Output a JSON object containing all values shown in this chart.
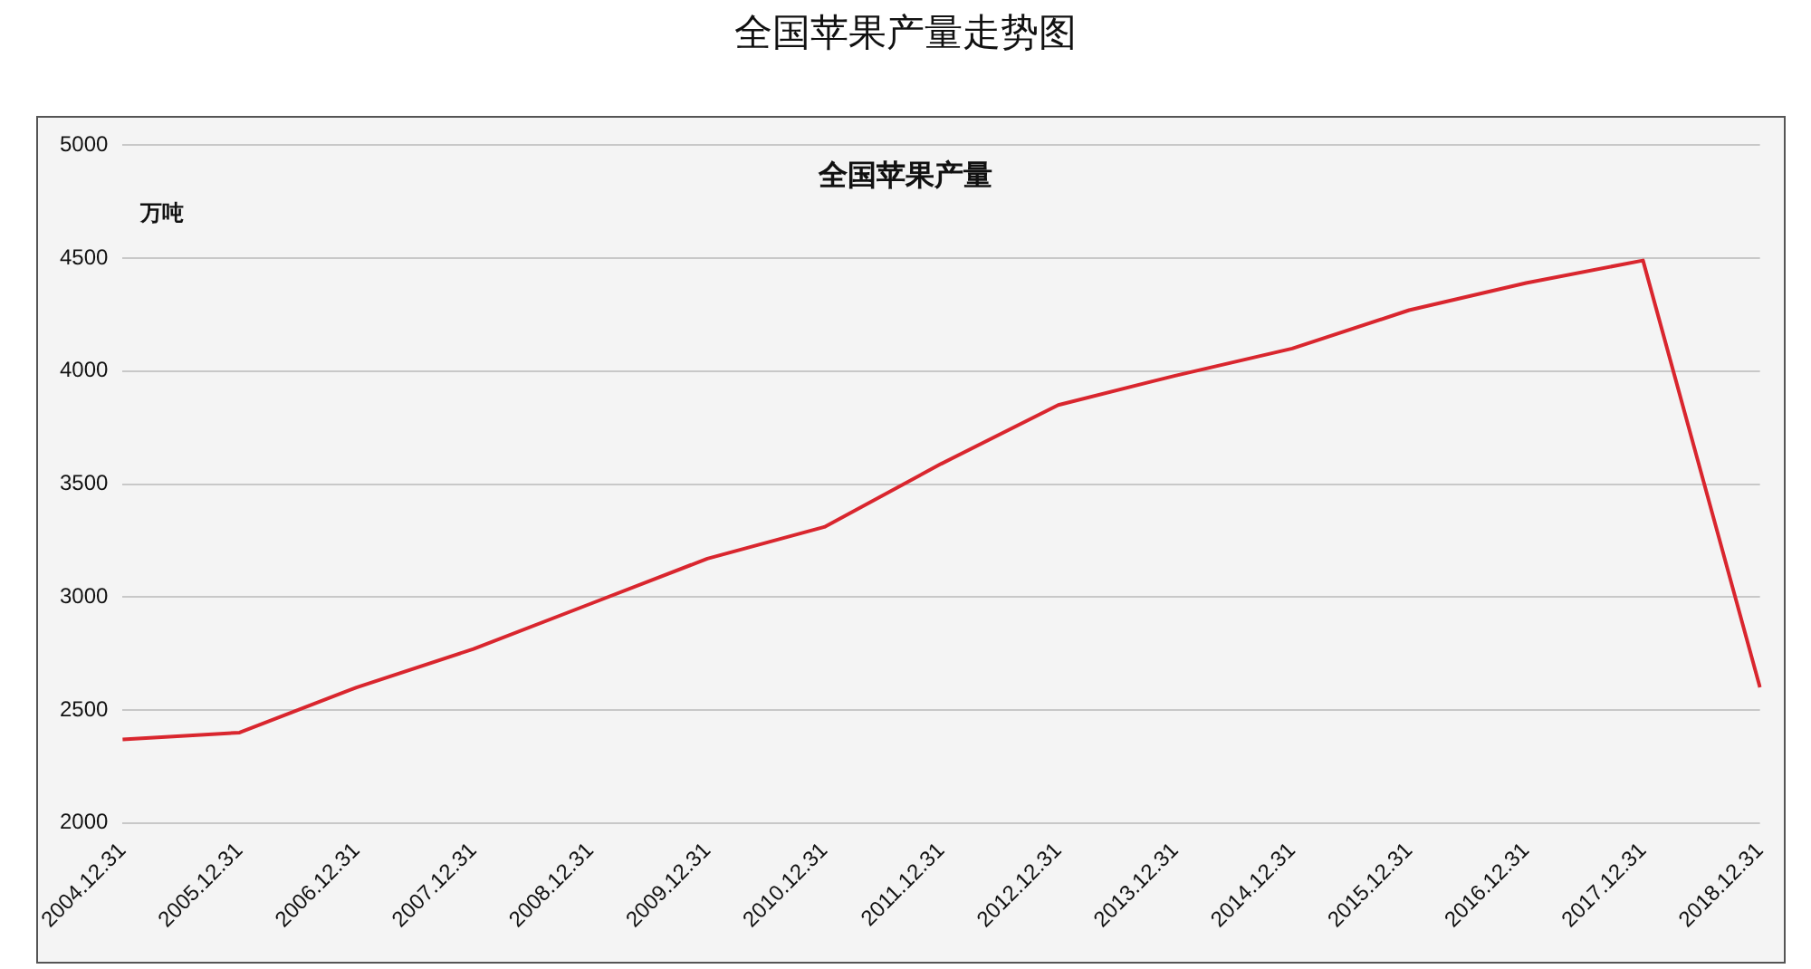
{
  "chart_data": {
    "type": "line",
    "title": "全国苹果产量走势图",
    "subtitle": "全国苹果产量",
    "ylabel": "万吨",
    "categories": [
      "2004.12.31",
      "2005.12.31",
      "2006.12.31",
      "2007.12.31",
      "2008.12.31",
      "2009.12.31",
      "2010.12.31",
      "2011.12.31",
      "2012.12.31",
      "2013.12.31",
      "2014.12.31",
      "2015.12.31",
      "2016.12.31",
      "2017.12.31",
      "2018.12.31"
    ],
    "series": [
      {
        "color": "#d9262e",
        "values": [
          2370,
          2400,
          2600,
          2770,
          2970,
          3170,
          3310,
          3590,
          3850,
          3980,
          4100,
          4270,
          4390,
          4490,
          2600
        ]
      }
    ],
    "ylim": [
      2000,
      5000
    ],
    "yticks": [
      2000,
      2500,
      3000,
      3500,
      4000,
      4500,
      5000
    ],
    "grid": "y",
    "legend": false,
    "marker": "none",
    "line_style": "solid"
  }
}
